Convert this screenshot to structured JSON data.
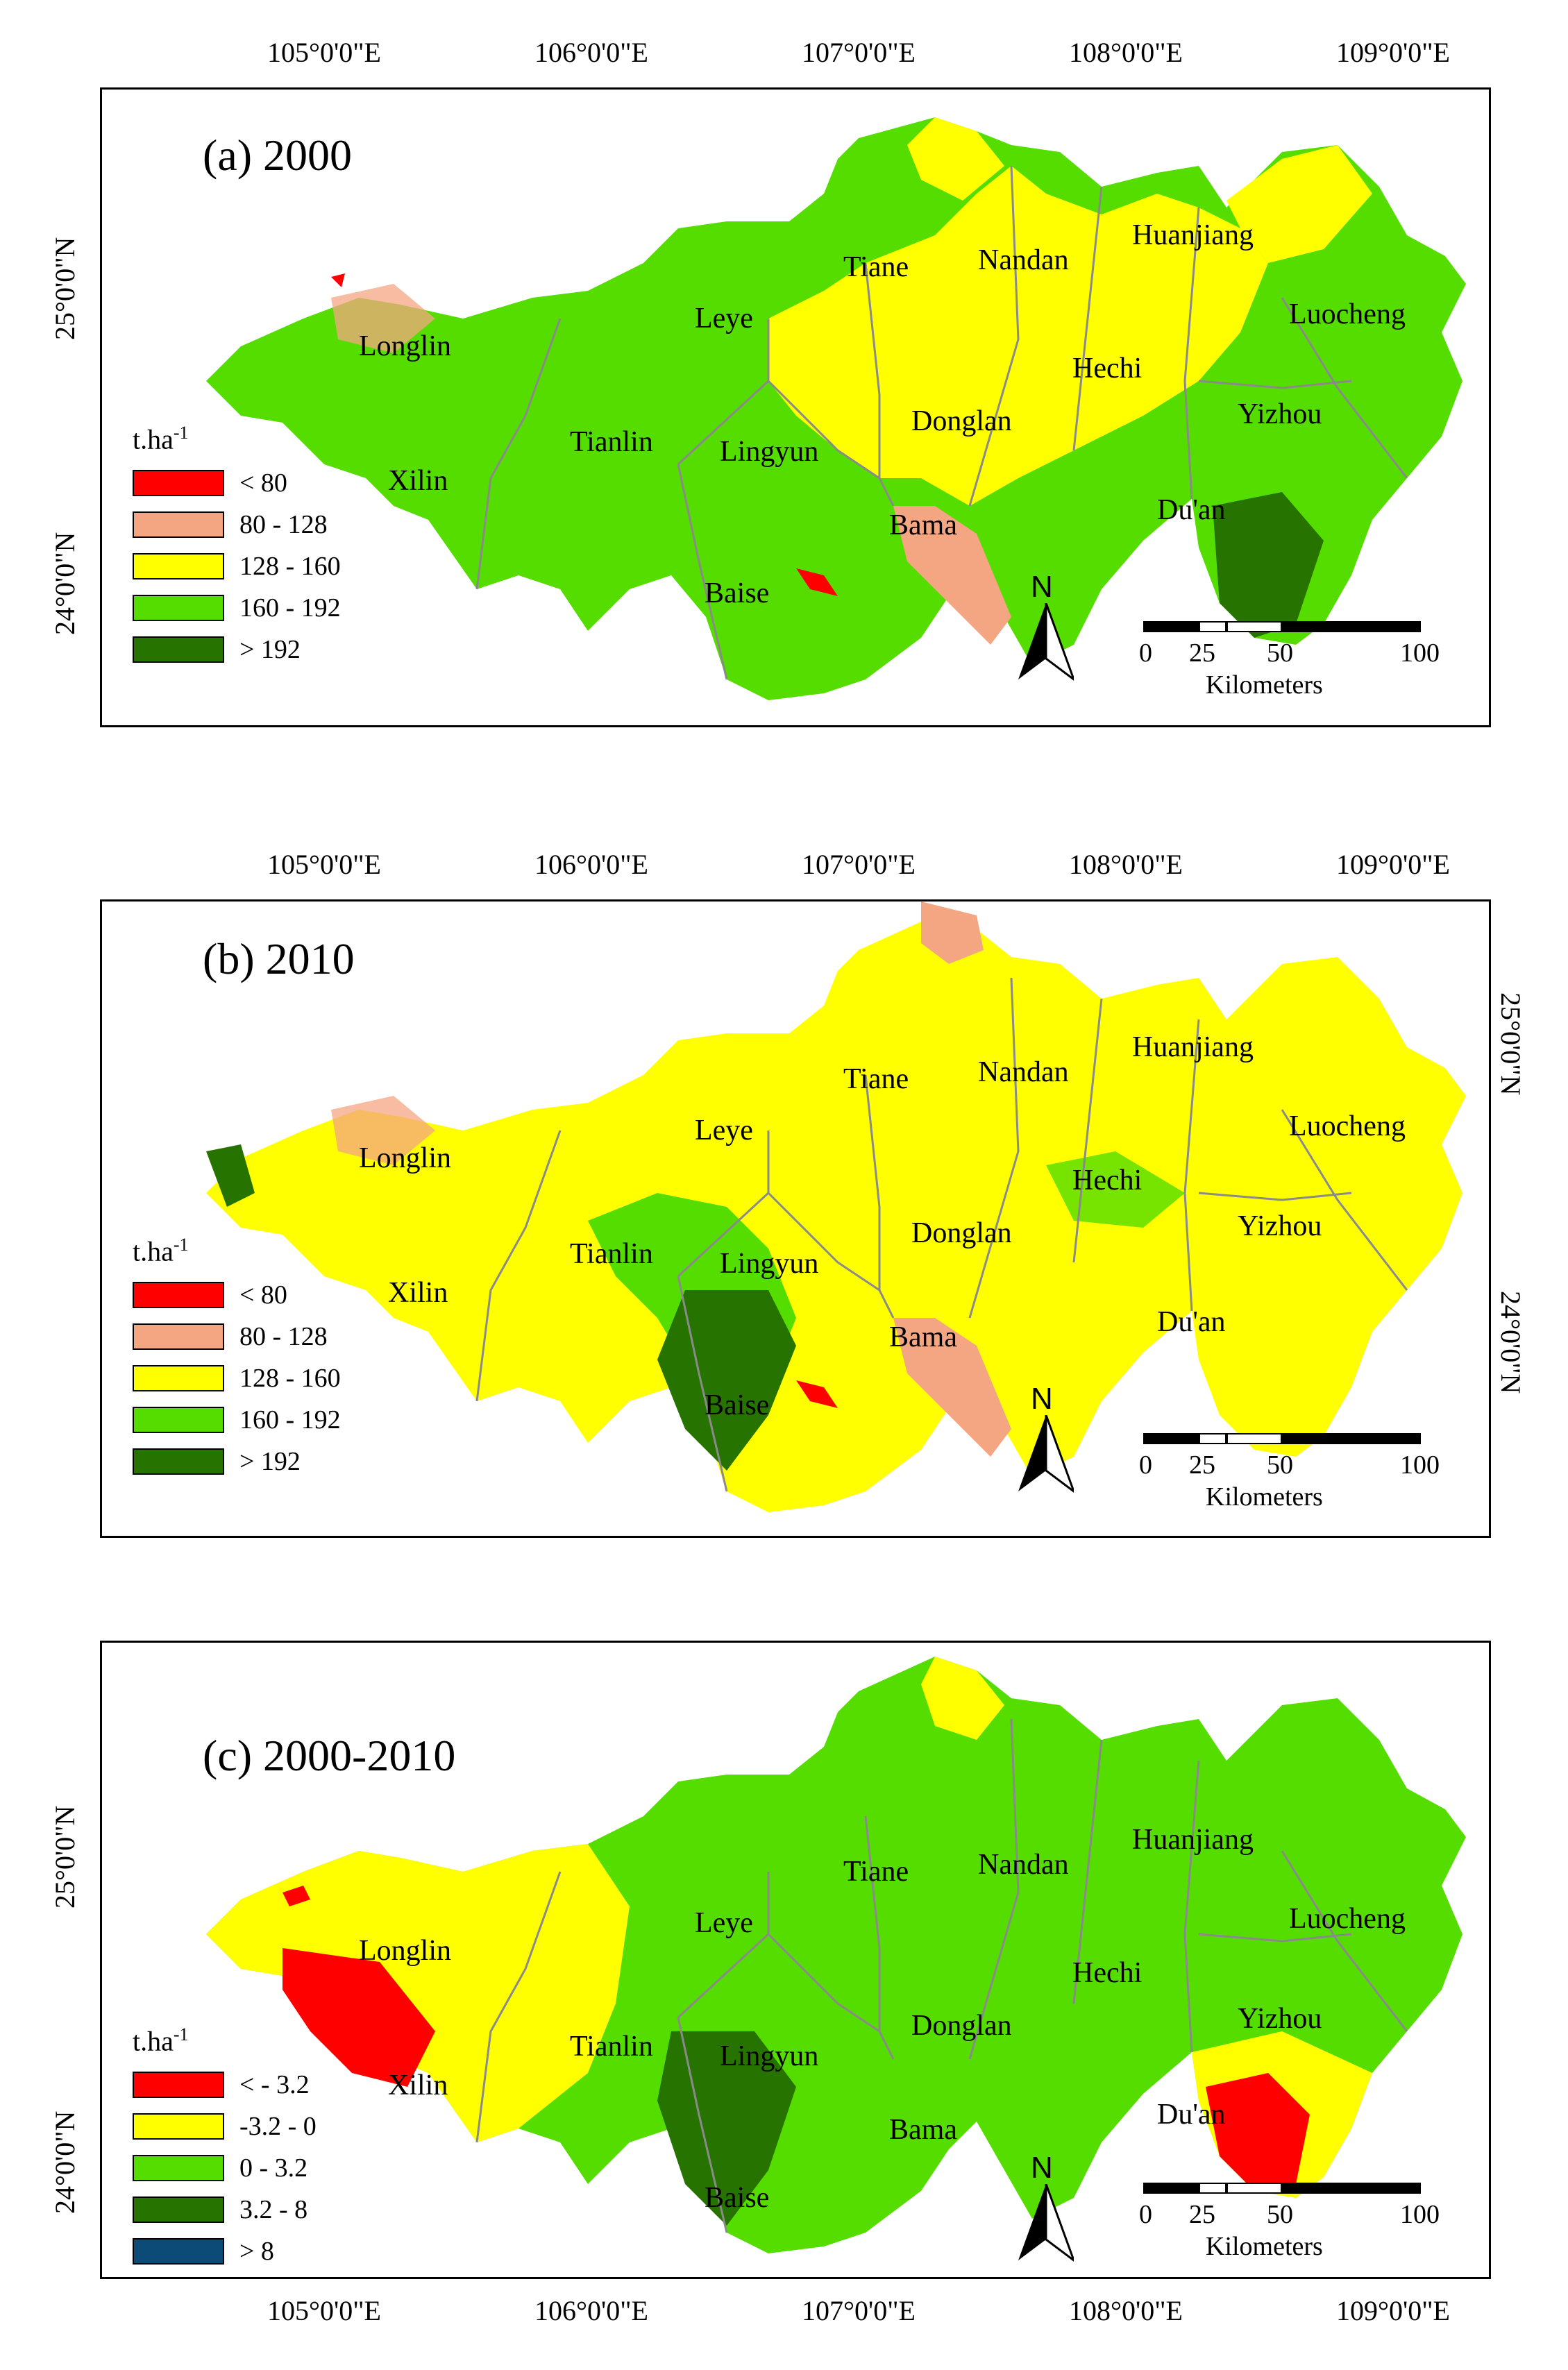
{
  "colors": {
    "red": "#ff0000",
    "salmon": "#f4a582",
    "yellow": "#ffff00",
    "light_green": "#55dd00",
    "dark_green": "#267300",
    "navy": "#0c4a77",
    "boundary": "#8a8a8a"
  },
  "axes": {
    "longitudes": [
      "105°0'0\"E",
      "106°0'0\"E",
      "107°0'0\"E",
      "108°0'0\"E",
      "109°0'0\"E"
    ],
    "lat_25": "25°0'0\"N",
    "lat_24": "24°0'0\"N"
  },
  "counties": {
    "longlin": "Longlin",
    "xilin": "Xilin",
    "tianlin": "Tianlin",
    "leye": "Leye",
    "lingyun": "Lingyun",
    "baise": "Baise",
    "tiane": "Tiane",
    "nandan": "Nandan",
    "donglan": "Donglan",
    "bama": "Bama",
    "hechi": "Hechi",
    "huanjiang": "Huanjiang",
    "luocheng": "Luocheng",
    "yizhou": "Yizhou",
    "duan": "Du'an"
  },
  "north_label": "N",
  "scalebar": {
    "ticks": [
      "0",
      "25",
      "50",
      "100"
    ],
    "units": "Kilometers"
  },
  "legend_unit": {
    "base": "t.ha",
    "exponent": "-1"
  },
  "panels": [
    {
      "title": "(a) 2000",
      "legend": [
        {
          "label": "< 80",
          "color": "#ff0000"
        },
        {
          "label": "80 - 128",
          "color": "#f4a582"
        },
        {
          "label": "128 - 160",
          "color": "#ffff00"
        },
        {
          "label": "160 - 192",
          "color": "#55dd00"
        },
        {
          "label": "> 192",
          "color": "#267300"
        }
      ]
    },
    {
      "title": "(b) 2010",
      "legend": [
        {
          "label": "< 80",
          "color": "#ff0000"
        },
        {
          "label": "80 - 128",
          "color": "#f4a582"
        },
        {
          "label": "128 - 160",
          "color": "#ffff00"
        },
        {
          "label": "160 - 192",
          "color": "#55dd00"
        },
        {
          "label": "> 192",
          "color": "#267300"
        }
      ]
    },
    {
      "title": "(c) 2000-2010",
      "legend": [
        {
          "label": "< - 3.2",
          "color": "#ff0000"
        },
        {
          "label": "-3.2 - 0",
          "color": "#ffff00"
        },
        {
          "label": "0 - 3.2",
          "color": "#55dd00"
        },
        {
          "label": "3.2 - 8",
          "color": "#267300"
        },
        {
          "label": "> 8",
          "color": "#0c4a77"
        }
      ]
    }
  ]
}
